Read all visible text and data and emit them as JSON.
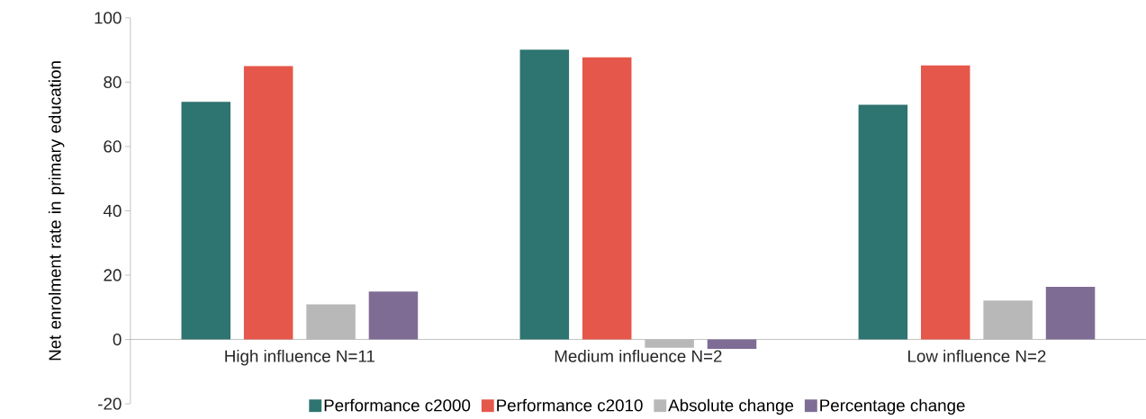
{
  "chart_data": {
    "type": "bar",
    "ylabel": "Net enrolment rate in primary education",
    "categories": [
      "High influence N=11",
      "Medium influence N=2",
      "Low influence N=2"
    ],
    "series": [
      {
        "name": "Performance c2000",
        "color": "#2e7470",
        "values": [
          73.9,
          90.1,
          73.0
        ]
      },
      {
        "name": "Performance c2010",
        "color": "#e5574a",
        "values": [
          85.0,
          87.7,
          85.2
        ]
      },
      {
        "name": "Absolute change",
        "color": "#b8b8b8",
        "values": [
          10.9,
          -2.6,
          12.1
        ]
      },
      {
        "name": "Percentage change",
        "color": "#7f6c95",
        "values": [
          14.9,
          -2.9,
          16.4
        ]
      }
    ],
    "ylim": [
      -20,
      100
    ],
    "yticks": [
      -20,
      0,
      20,
      40,
      60,
      80,
      100
    ],
    "grid": false,
    "legend": "bottom"
  }
}
